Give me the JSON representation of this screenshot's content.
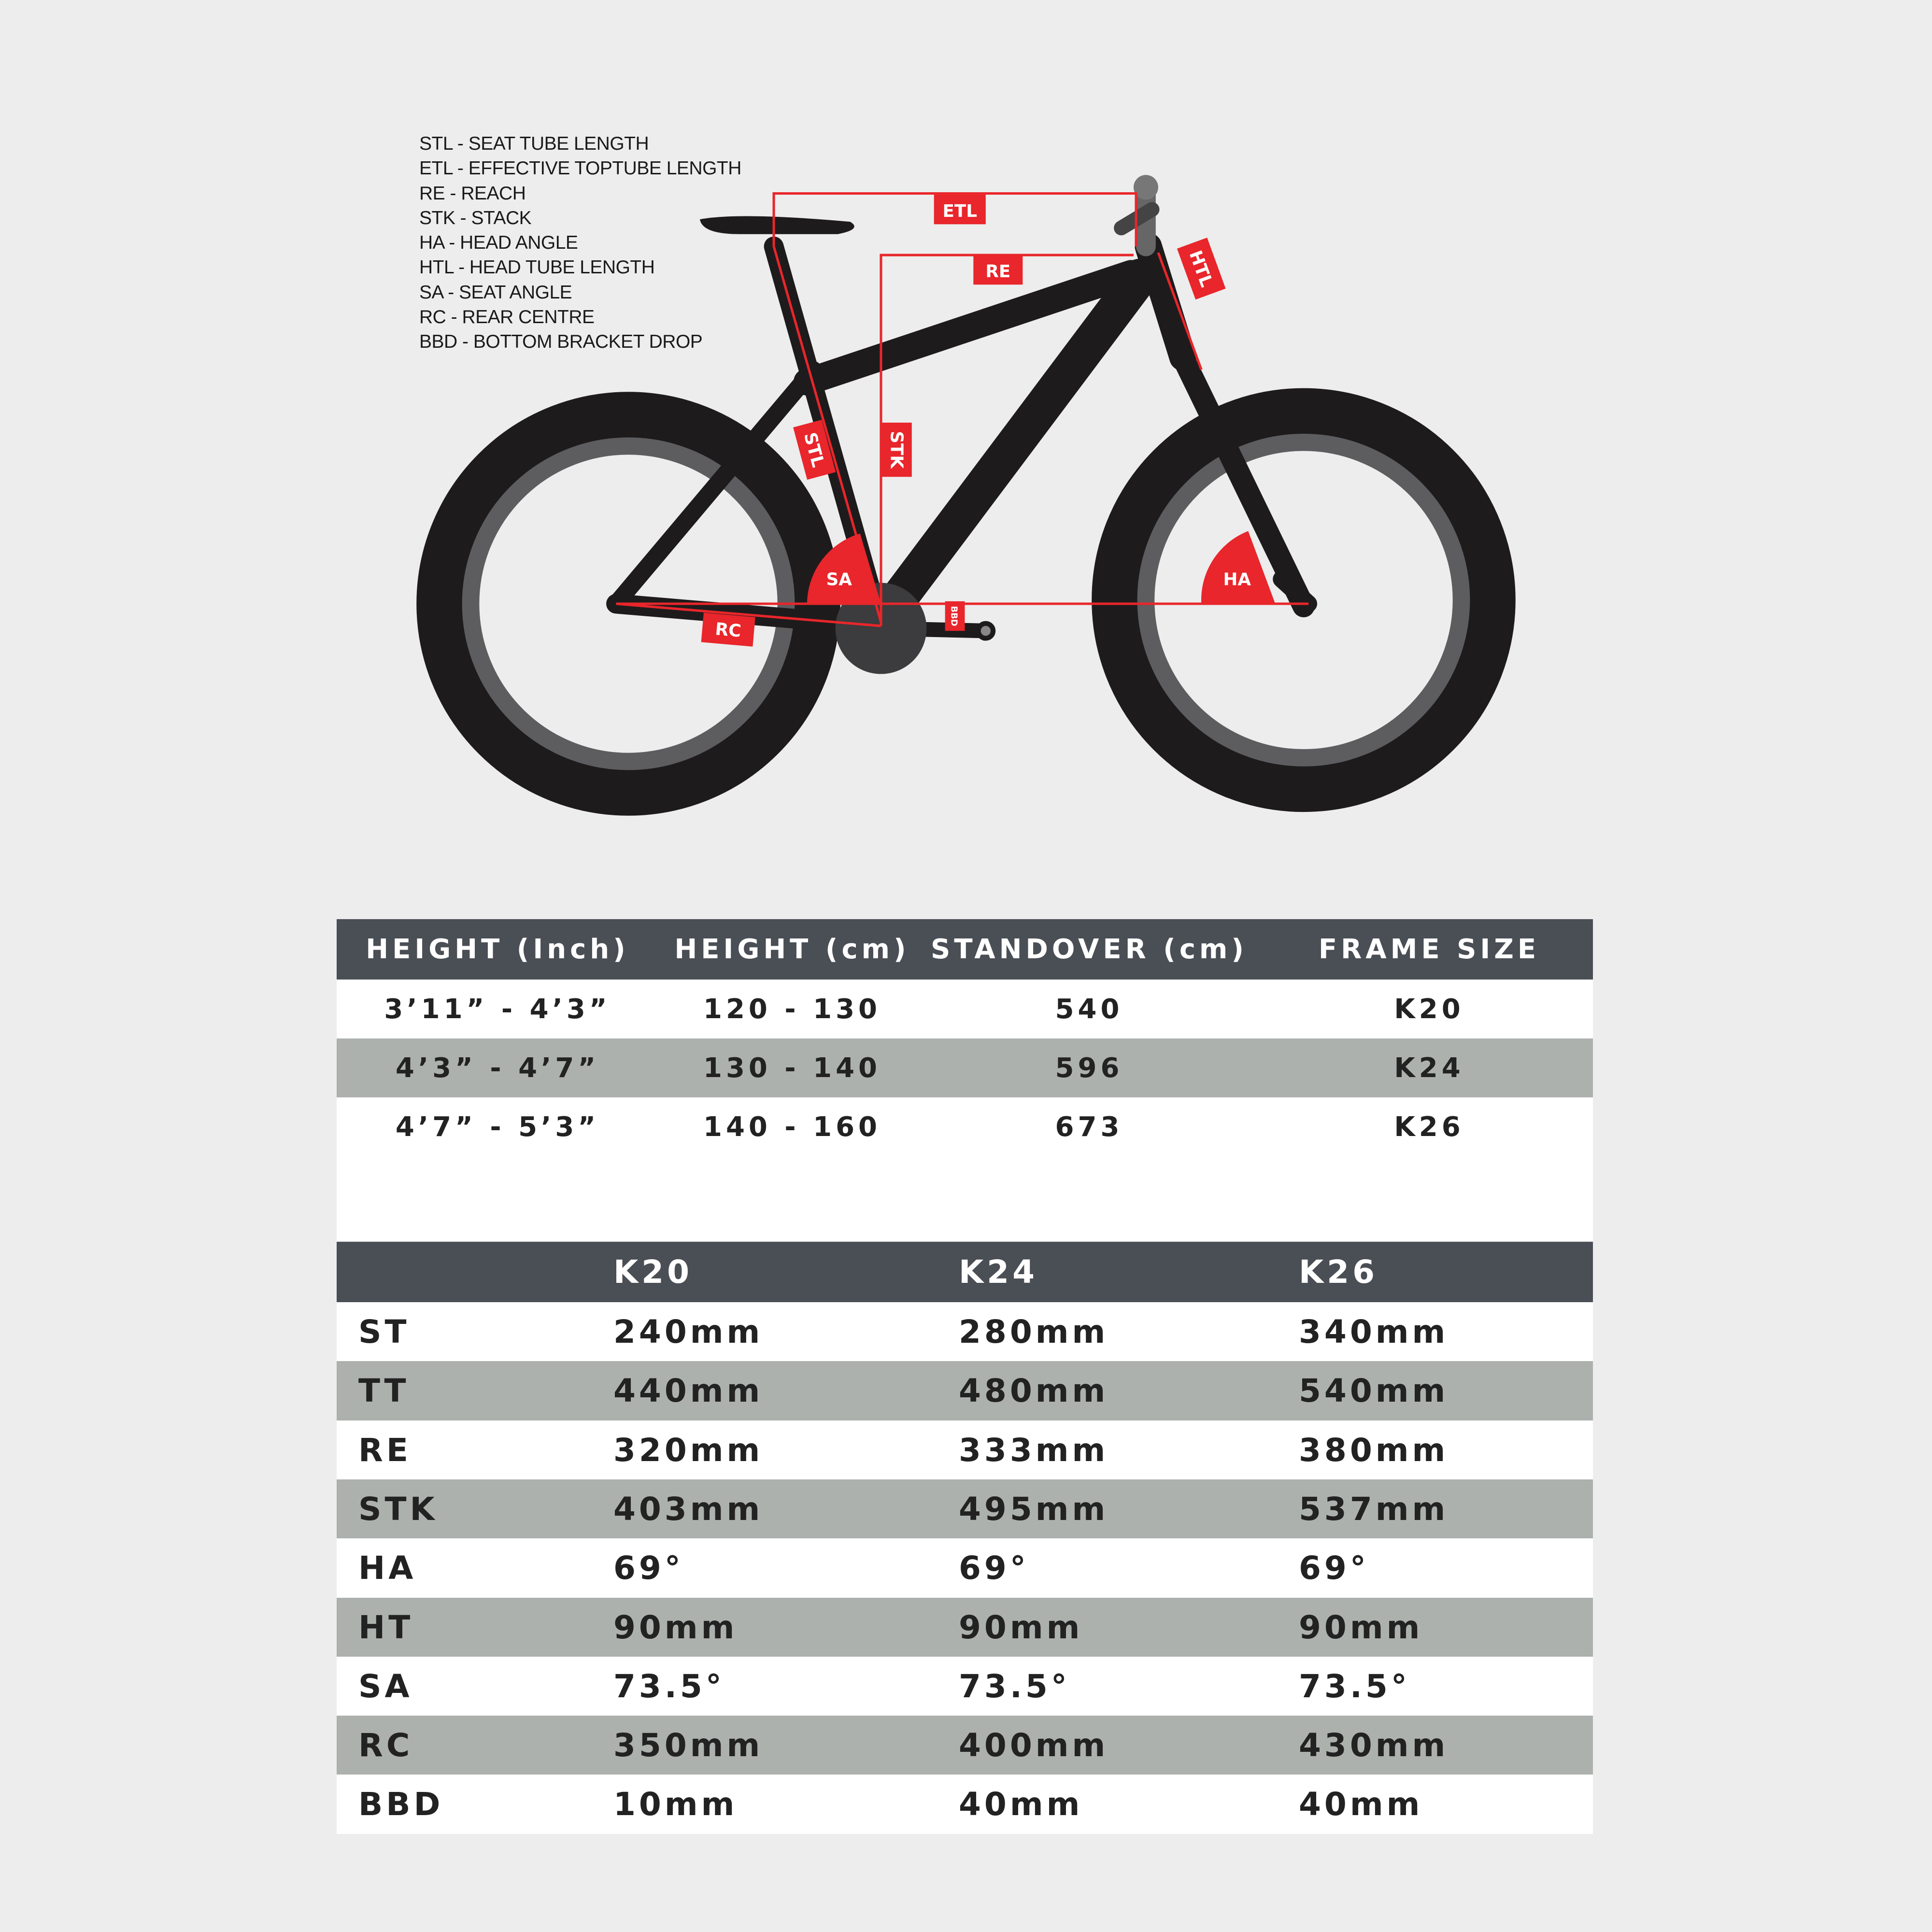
{
  "legend": [
    "STL - SEAT TUBE LENGTH",
    "ETL - EFFECTIVE TOPTUBE LENGTH",
    "RE - REACH",
    "STK - STACK",
    "HA - HEAD ANGLE",
    "HTL - HEAD TUBE LENGTH",
    "SA - SEAT ANGLE",
    "RC - REAR CENTRE",
    "BBD - BOTTOM BRACKET DROP"
  ],
  "diagram_labels": {
    "etl": "ETL",
    "re": "RE",
    "htl": "HTL",
    "stl": "STL",
    "stk": "STK",
    "sa": "SA",
    "ha": "HA",
    "rc": "RC",
    "bbd": "BBD"
  },
  "colors": {
    "accent_red": "#e8262b",
    "header_dark": "#4a4e55",
    "row_grey": "#adb1ae",
    "background": "#ededed",
    "frame": "#1e1b1c"
  },
  "size_table": {
    "headers": [
      "HEIGHT (Inch)",
      "HEIGHT (cm)",
      "STANDOVER (cm)",
      "FRAME SIZE"
    ],
    "rows": [
      [
        "3’11” - 4’3”",
        "120 - 130",
        "540",
        "K20"
      ],
      [
        "4’3” - 4’7”",
        "130 - 140",
        "596",
        "K24"
      ],
      [
        "4’7” - 5’3”",
        "140 - 160",
        "673",
        "K26"
      ]
    ]
  },
  "geometry_table": {
    "headers": [
      "",
      "K20",
      "K24",
      "K26"
    ],
    "rows": [
      [
        "ST",
        "240mm",
        "280mm",
        "340mm"
      ],
      [
        "TT",
        "440mm",
        "480mm",
        "540mm"
      ],
      [
        "RE",
        "320mm",
        "333mm",
        "380mm"
      ],
      [
        "STK",
        "403mm",
        "495mm",
        "537mm"
      ],
      [
        "HA",
        "69°",
        "69°",
        "69°"
      ],
      [
        "HT",
        "90mm",
        "90mm",
        "90mm"
      ],
      [
        "SA",
        "73.5°",
        "73.5°",
        "73.5°"
      ],
      [
        "RC",
        "350mm",
        "400mm",
        "430mm"
      ],
      [
        "BBD",
        "10mm",
        "40mm",
        "40mm"
      ]
    ]
  }
}
